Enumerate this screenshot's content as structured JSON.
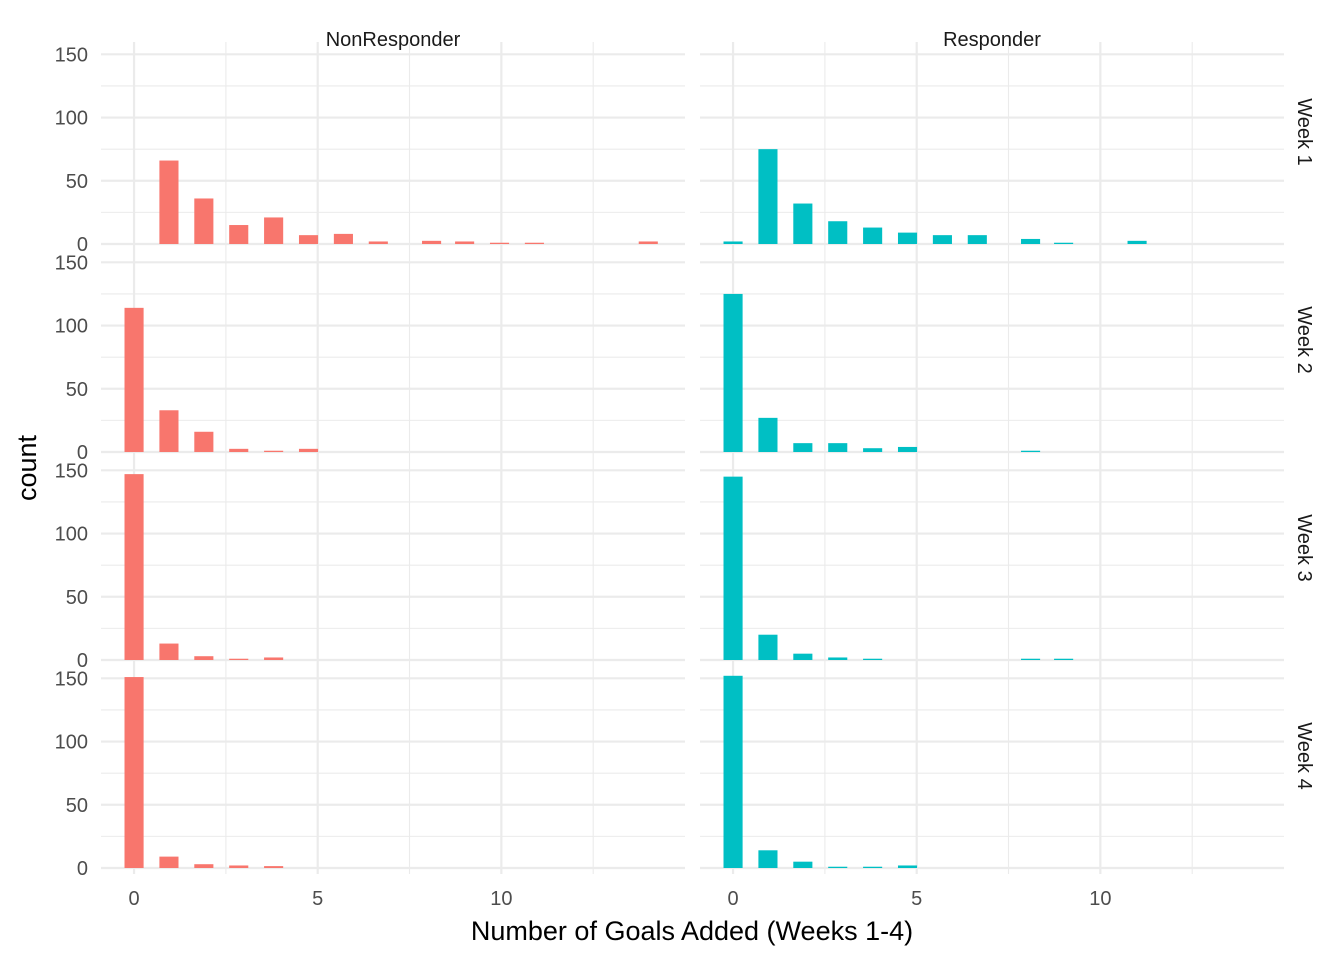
{
  "chart_data": {
    "type": "bar",
    "xlabel": "Number of Goals Added (Weeks 1-4)",
    "ylabel": "count",
    "facet_columns": [
      "NonResponder",
      "Responder"
    ],
    "facet_rows": [
      "Week 1",
      "Week 2",
      "Week 3",
      "Week 4"
    ],
    "xlim": [
      -0.9,
      15
    ],
    "ylim": [
      0,
      155
    ],
    "x_ticks": [
      0,
      5,
      10
    ],
    "x_tick_labels": [
      "0",
      "5",
      "10"
    ],
    "y_ticks": [
      0,
      50,
      100,
      150
    ],
    "y_tick_labels": [
      "0",
      "50",
      "100",
      "150"
    ],
    "bar_width": 0.52,
    "grid": true,
    "legend": "none",
    "colors": {
      "NonResponder": "#F8766D",
      "Responder": "#00BFC4"
    },
    "panels": [
      {
        "column": "NonResponder",
        "row": "Week 1",
        "bars": [
          [
            0.95,
            66
          ],
          [
            1.9,
            36
          ],
          [
            2.85,
            15
          ],
          [
            3.8,
            21
          ],
          [
            4.75,
            7
          ],
          [
            5.7,
            8
          ],
          [
            6.65,
            2
          ],
          [
            8.1,
            2.5
          ],
          [
            9.0,
            2
          ],
          [
            9.95,
            1
          ],
          [
            10.9,
            1
          ],
          [
            14.0,
            2
          ]
        ]
      },
      {
        "column": "Responder",
        "row": "Week 1",
        "bars": [
          [
            0,
            2
          ],
          [
            0.95,
            75
          ],
          [
            1.9,
            32
          ],
          [
            2.85,
            18
          ],
          [
            3.8,
            13
          ],
          [
            4.75,
            9
          ],
          [
            5.7,
            7
          ],
          [
            6.65,
            7
          ],
          [
            8.1,
            4
          ],
          [
            9.0,
            1
          ],
          [
            11.0,
            2.5
          ]
        ]
      },
      {
        "column": "NonResponder",
        "row": "Week 2",
        "bars": [
          [
            0,
            114
          ],
          [
            0.95,
            33
          ],
          [
            1.9,
            16
          ],
          [
            2.85,
            2.5
          ],
          [
            3.8,
            1
          ],
          [
            4.75,
            2.5
          ]
        ]
      },
      {
        "column": "Responder",
        "row": "Week 2",
        "bars": [
          [
            0,
            125
          ],
          [
            0.95,
            27
          ],
          [
            1.9,
            7
          ],
          [
            2.85,
            7
          ],
          [
            3.8,
            3
          ],
          [
            4.75,
            4
          ],
          [
            8.1,
            1
          ]
        ]
      },
      {
        "column": "NonResponder",
        "row": "Week 3",
        "bars": [
          [
            0,
            147
          ],
          [
            0.95,
            13
          ],
          [
            1.9,
            3
          ],
          [
            2.85,
            1
          ],
          [
            3.8,
            2
          ]
        ]
      },
      {
        "column": "Responder",
        "row": "Week 3",
        "bars": [
          [
            0,
            145
          ],
          [
            0.95,
            20
          ],
          [
            1.9,
            5
          ],
          [
            2.85,
            2
          ],
          [
            3.8,
            1
          ],
          [
            8.1,
            1
          ],
          [
            9.0,
            1
          ]
        ]
      },
      {
        "column": "NonResponder",
        "row": "Week 4",
        "bars": [
          [
            0,
            151
          ],
          [
            0.95,
            9
          ],
          [
            1.9,
            3
          ],
          [
            2.85,
            2
          ],
          [
            3.8,
            1.5
          ]
        ]
      },
      {
        "column": "Responder",
        "row": "Week 4",
        "bars": [
          [
            0,
            152
          ],
          [
            0.95,
            14
          ],
          [
            1.9,
            5
          ],
          [
            2.85,
            1
          ],
          [
            3.8,
            1
          ],
          [
            4.75,
            2
          ]
        ]
      }
    ]
  }
}
